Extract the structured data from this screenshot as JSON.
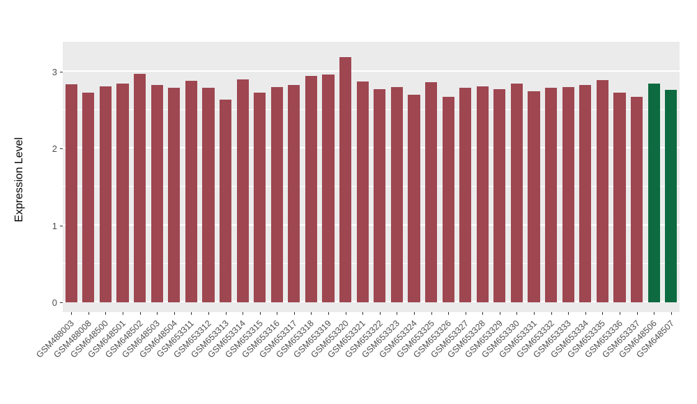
{
  "chart_data": {
    "type": "bar",
    "title": "",
    "xlabel": "",
    "ylabel": "Expression Level",
    "ylim": [
      0,
      3.35
    ],
    "yticks": [
      0,
      1,
      2,
      3
    ],
    "minor_ticks": [
      0.5,
      1.5,
      2.5
    ],
    "grid": "on",
    "legend_position": "none",
    "panel_background": "#EBEBEB",
    "gridline_color": "#FFFFFF",
    "axis_text_color": "#4D4D4D",
    "categories": [
      "GSM488003",
      "GSM488008",
      "GSM648500",
      "GSM648501",
      "GSM648502",
      "GSM648503",
      "GSM648504",
      "GSM653311",
      "GSM653312",
      "GSM653313",
      "GSM653314",
      "GSM653315",
      "GSM653316",
      "GSM653317",
      "GSM653318",
      "GSM653319",
      "GSM653320",
      "GSM653321",
      "GSM653322",
      "GSM653323",
      "GSM653324",
      "GSM653325",
      "GSM653326",
      "GSM653327",
      "GSM653328",
      "GSM653329",
      "GSM653330",
      "GSM653331",
      "GSM653332",
      "GSM653333",
      "GSM653334",
      "GSM653335",
      "GSM653336",
      "GSM653337",
      "GSM648506",
      "GSM648507"
    ],
    "values": [
      2.83,
      2.72,
      2.81,
      2.84,
      2.97,
      2.82,
      2.79,
      2.88,
      2.79,
      2.63,
      2.9,
      2.72,
      2.8,
      2.82,
      2.94,
      2.96,
      3.19,
      2.87,
      2.77,
      2.8,
      2.7,
      2.86,
      2.67,
      2.79,
      2.81,
      2.77,
      2.84,
      2.74,
      2.79,
      2.8,
      2.82,
      2.89,
      2.72,
      2.67,
      2.84,
      2.76
    ],
    "bar_colors": {
      "default": "#9E4751",
      "highlight": "#0E6B41"
    },
    "highlight_categories": [
      "GSM648506",
      "GSM648507"
    ]
  }
}
